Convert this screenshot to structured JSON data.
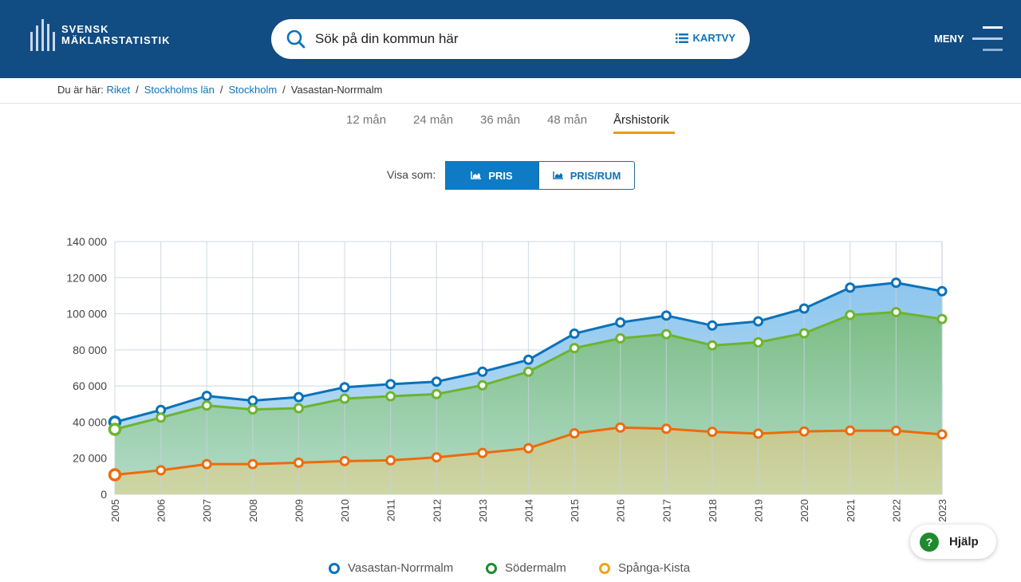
{
  "header": {
    "logo_line1": "SVENSK",
    "logo_line2": "MÄKLARSTATISTIK",
    "search_placeholder": "Sök på din kommun här",
    "kartvy_label": "KARTVY",
    "menu_label": "MENY",
    "brand_color": "#114c82"
  },
  "breadcrumb": {
    "prefix": "Du är här:",
    "items": [
      "Riket",
      "Stockholms län",
      "Stockholm"
    ],
    "current": "Vasastan-Norrmalm"
  },
  "tabs": [
    {
      "label": "12 mån",
      "active": false
    },
    {
      "label": "24 mån",
      "active": false
    },
    {
      "label": "36 mån",
      "active": false
    },
    {
      "label": "48 mån",
      "active": false
    },
    {
      "label": "Årshistorik",
      "active": true
    }
  ],
  "view_toggle": {
    "label": "Visa som:",
    "options": [
      {
        "label": "PRIS",
        "active": true
      },
      {
        "label": "PRIS/RUM",
        "active": false
      }
    ]
  },
  "help": {
    "label": "Hjälp",
    "icon": "?"
  },
  "chart_data": {
    "type": "area",
    "title": "",
    "xlabel": "",
    "ylabel": "",
    "ylim": [
      0,
      140000
    ],
    "yticks": [
      0,
      20000,
      40000,
      60000,
      80000,
      100000,
      120000,
      140000
    ],
    "ytick_labels": [
      "0",
      "20 000",
      "40 000",
      "60 000",
      "80 000",
      "100 000",
      "120 000",
      "140 000"
    ],
    "grid": true,
    "legend_position": "bottom",
    "categories": [
      "2005",
      "2006",
      "2007",
      "2008",
      "2009",
      "2010",
      "2011",
      "2012",
      "2013",
      "2014",
      "2015",
      "2016",
      "2017",
      "2018",
      "2019",
      "2020",
      "2021",
      "2022",
      "2023"
    ],
    "series": [
      {
        "name": "Vasastan-Norrmalm",
        "color": "#0a72b9",
        "fill": "#9ccbec",
        "values": [
          40000,
          46700,
          54500,
          51900,
          53800,
          59300,
          61000,
          62400,
          67900,
          74500,
          89000,
          95200,
          99000,
          93500,
          95800,
          102900,
          114500,
          117200,
          112500
        ]
      },
      {
        "name": "Södermalm",
        "color": "#6cb42f",
        "legend_color": "#1f8a2e",
        "fill": "#7fc08e",
        "values": [
          36000,
          42500,
          49200,
          47000,
          47700,
          53000,
          54300,
          55500,
          60400,
          67900,
          81000,
          86400,
          88700,
          82500,
          84200,
          89200,
          99300,
          100900,
          97100
        ]
      },
      {
        "name": "Spånga-Kista",
        "color": "#ec6c0c",
        "legend_color": "#efa319",
        "fill": "#cad39e",
        "values": [
          10800,
          13300,
          16700,
          16700,
          17500,
          18400,
          18800,
          20500,
          22900,
          25500,
          33800,
          37000,
          36300,
          34600,
          33600,
          34800,
          35300,
          35200,
          33200
        ]
      }
    ]
  }
}
